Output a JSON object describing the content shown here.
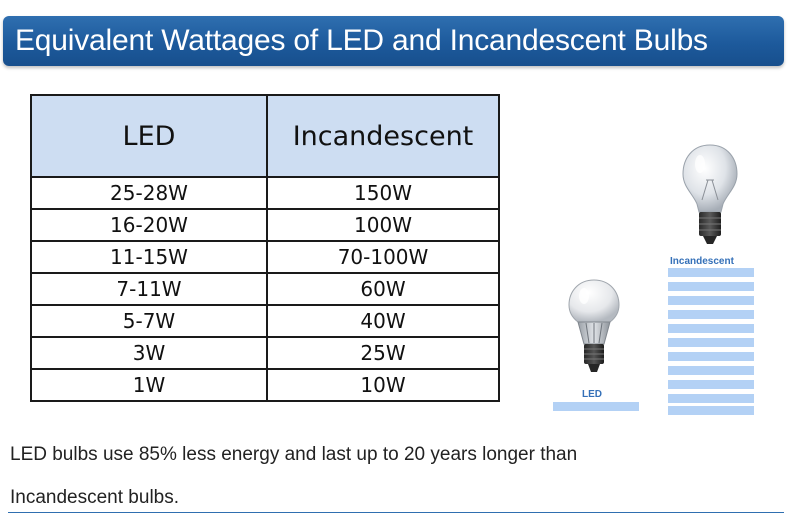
{
  "title": "Equivalent Wattages of LED and Incandescent Bulbs",
  "table": {
    "headers": [
      "LED",
      "Incandescent"
    ],
    "rows": [
      [
        "25-28W",
        "150W"
      ],
      [
        "16-20W",
        "100W"
      ],
      [
        "11-15W",
        "70-100W"
      ],
      [
        "7-11W",
        "60W"
      ],
      [
        "5-7W",
        "40W"
      ],
      [
        "3W",
        "25W"
      ],
      [
        "1W",
        "10W"
      ]
    ]
  },
  "illustration": {
    "incandescent_label": "Incandescent",
    "led_label": "LED",
    "icons": [
      "incandescent-bulb-icon",
      "led-bulb-icon"
    ],
    "stripe_color": "#b3d1f5",
    "label_color": "#3470b8"
  },
  "footer": {
    "line1": "LED bulbs use 85% less energy and last up to 20 years longer than",
    "line2": "Incandescent bulbs."
  },
  "colors": {
    "banner": "#1d5a9c",
    "header_fill": "#cdddf2",
    "border": "#1a1a1a"
  }
}
